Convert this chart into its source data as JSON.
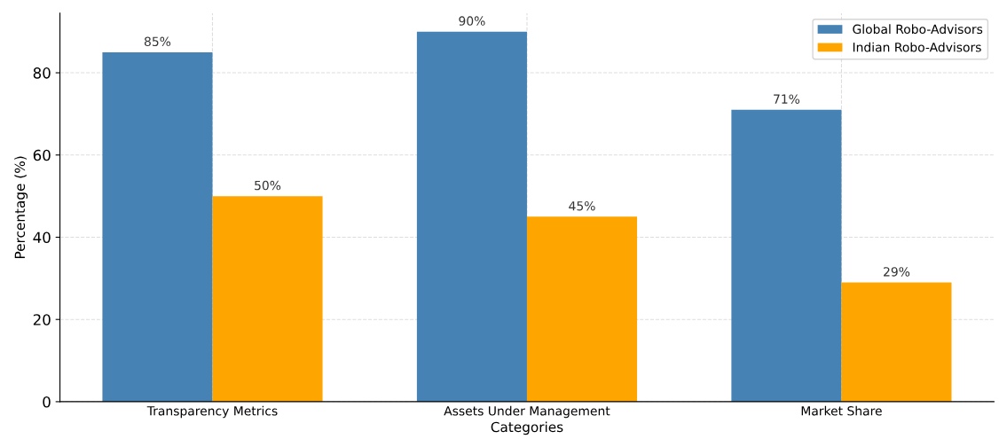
{
  "chart_data": {
    "type": "bar",
    "xlabel": "Categories",
    "ylabel": "Percentage (%)",
    "categories": [
      "Transparency Metrics",
      "Assets Under Management",
      "Market Share"
    ],
    "series": [
      {
        "name": "Global Robo-Advisors",
        "color": "#4682b4",
        "values": [
          85,
          90,
          71
        ],
        "value_labels": [
          "85%",
          "90%",
          "71%"
        ]
      },
      {
        "name": "Indian Robo-Advisors",
        "color": "#ffa500",
        "values": [
          50,
          45,
          29
        ],
        "value_labels": [
          "50%",
          "45%",
          "29%"
        ]
      }
    ],
    "ylim": [
      0,
      94.5
    ],
    "yticks": [
      0,
      20,
      40,
      60,
      80
    ],
    "grid": true,
    "legend": "top right"
  }
}
